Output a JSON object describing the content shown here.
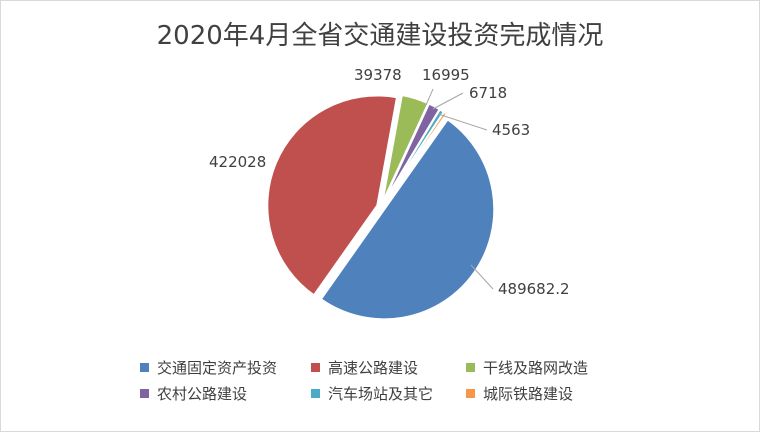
{
  "chart_data": {
    "type": "pie",
    "title": "2020年4月全省交通建设投资完成情况",
    "categories": [
      "交通固定资产投资",
      "高速公路建设",
      "干线及路网改造",
      "农村公路建设",
      "汽车场站及其它",
      "城际铁路建设"
    ],
    "values": [
      489682.2,
      422028,
      39378,
      16995,
      6718,
      4563
    ],
    "labels": [
      "489682.2",
      "422028",
      "39378",
      "16995",
      "6718",
      "4563"
    ],
    "colors": [
      "#4f81bd",
      "#c0504d",
      "#9bbb59",
      "#8064a2",
      "#4bacc6",
      "#f79646"
    ],
    "legend_position": "bottom"
  }
}
